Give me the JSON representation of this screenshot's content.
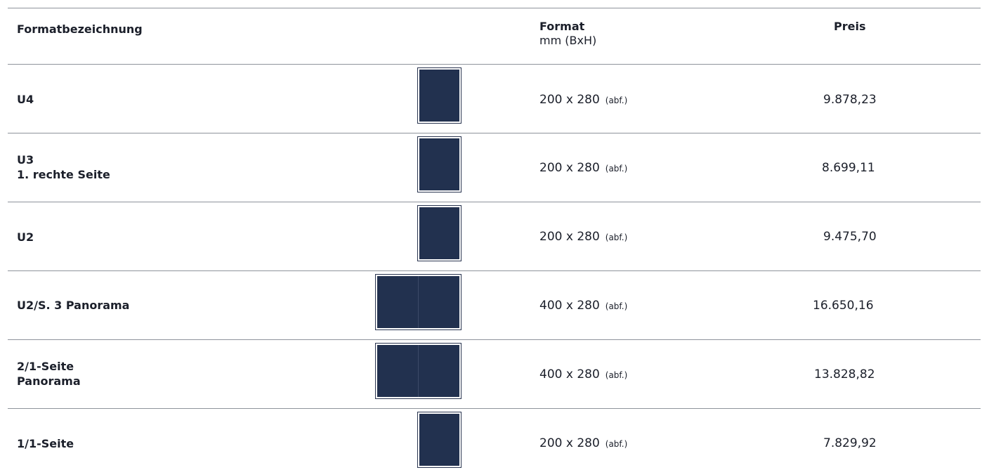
{
  "header": {
    "col_name": "Formatbezeichnung",
    "col_format": "Format",
    "col_format_unit": "mm (BxH)",
    "col_price": "Preis"
  },
  "rows": [
    {
      "name_lines": [
        "U4"
      ],
      "format": "200 x 280",
      "note": "(abf.)",
      "price": "9.878,23",
      "thumb": "single"
    },
    {
      "name_lines": [
        "U3",
        "1. rechte Seite"
      ],
      "format": "200 x 280",
      "note": "(abf.)",
      "price": "8.699,11",
      "thumb": "single"
    },
    {
      "name_lines": [
        "U2"
      ],
      "format": "200 x 280",
      "note": "(abf.)",
      "price": "9.475,70",
      "thumb": "single"
    },
    {
      "name_lines": [
        "U2/S. 3 Panorama"
      ],
      "format": "400 x 280",
      "note": "(abf.)",
      "price": "16.650,16",
      "thumb": "double"
    },
    {
      "name_lines": [
        "2/1-Seite",
        "Panorama"
      ],
      "format": "400 x 280",
      "note": "(abf.)",
      "price": "13.828,82",
      "thumb": "double"
    },
    {
      "name_lines": [
        "1/1-Seite"
      ],
      "format": "200 x 280",
      "note": "(abf.)",
      "price": "7.829,92",
      "thumb": "single"
    }
  ],
  "colors": {
    "thumb_fill": "#22314f",
    "rule": "#8e939b",
    "text": "#1b1f2a"
  }
}
